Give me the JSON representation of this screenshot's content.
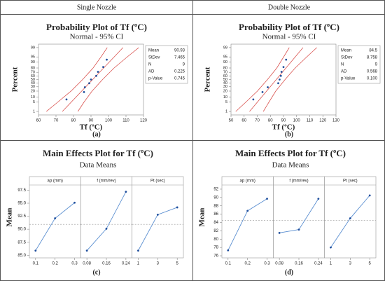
{
  "table": {
    "headers": [
      "Single Nozzle",
      "Double Nozzle"
    ],
    "captions": [
      "(a)",
      "(b)",
      "(c)",
      "(d)"
    ]
  },
  "chart_data": [
    {
      "type": "probability",
      "title": "Probability Plot of Tf (ºC)",
      "subtitle": "Normal - 95% CI",
      "xlabel": "Tf (ºC)",
      "ylabel": "Percent",
      "xlim": [
        60,
        120
      ],
      "xticks": [
        60,
        70,
        80,
        90,
        100,
        110,
        120
      ],
      "ylim": [
        0.5,
        99.5
      ],
      "yticks": [
        1,
        5,
        10,
        20,
        30,
        40,
        50,
        60,
        70,
        80,
        90,
        95,
        99
      ],
      "point_color": "#1f4e9c",
      "line_color": "#d9534f",
      "points": {
        "x": [
          76,
          86,
          86.5,
          89,
          90,
          93,
          94,
          97,
          99
        ],
        "y": [
          7.4,
          18.1,
          28.7,
          39.4,
          50,
          60.6,
          71.3,
          81.9,
          92.6
        ]
      },
      "fit": {
        "x": [
          73.6,
          108.3
        ],
        "y": [
          1,
          99
        ]
      },
      "ci_low": {
        "x": [
          64.5,
          71,
          78.6,
          85.2,
          91.2,
          95.7,
          99.3
        ],
        "y": [
          1,
          5,
          20,
          50,
          80,
          95,
          99
        ]
      },
      "ci_high": {
        "x": [
          82.5,
          86,
          90.6,
          96.6,
          103.2,
          110.7,
          117.3
        ],
        "y": [
          1,
          5,
          20,
          50,
          80,
          95,
          99
        ]
      },
      "stats": [
        {
          "label": "Mean",
          "value": "90.93"
        },
        {
          "label": "StDev",
          "value": "7.465"
        },
        {
          "label": "N",
          "value": "9"
        },
        {
          "label": "AD",
          "value": "0.225"
        },
        {
          "label": "p-Value",
          "value": "0.745"
        }
      ]
    },
    {
      "type": "probability",
      "title": "Probability Plot of Tf (ºC)",
      "subtitle": "Normal - 95% CI",
      "xlabel": "Tf (ºC)",
      "ylabel": "Percent",
      "xlim": [
        50,
        130
      ],
      "xticks": [
        50,
        60,
        70,
        80,
        90,
        100,
        110,
        120,
        130
      ],
      "ylim": [
        0.5,
        99.5
      ],
      "yticks": [
        1,
        5,
        10,
        20,
        30,
        40,
        50,
        60,
        70,
        80,
        90,
        95,
        99
      ],
      "point_color": "#1f4e9c",
      "line_color": "#d9534f",
      "points": {
        "x": [
          67,
          74,
          78,
          86,
          87,
          88,
          88.5,
          90,
          92
        ],
        "y": [
          7.4,
          18.1,
          28.7,
          39.4,
          50,
          60.6,
          71.3,
          81.9,
          92.6
        ]
      },
      "fit": {
        "x": [
          64.1,
          104.9
        ],
        "y": [
          1,
          99
        ]
      },
      "ci_low": {
        "x": [
          53.6,
          61.3,
          70.1,
          77.8,
          84.9,
          90.1,
          94.4
        ],
        "y": [
          1,
          5,
          20,
          50,
          80,
          95,
          99
        ]
      },
      "ci_high": {
        "x": [
          74.6,
          78.9,
          84.1,
          91.2,
          98.9,
          107.7,
          115.4
        ],
        "y": [
          1,
          5,
          20,
          50,
          80,
          95,
          99
        ]
      },
      "stats": [
        {
          "label": "Mean",
          "value": "84.5"
        },
        {
          "label": "StDev",
          "value": "8.758"
        },
        {
          "label": "N",
          "value": "9"
        },
        {
          "label": "AD",
          "value": "0.568"
        },
        {
          "label": "p-Value",
          "value": "0.100"
        }
      ]
    },
    {
      "type": "main_effects",
      "title": "Main Effects Plot for Tf (ºC)",
      "subtitle": "Data Means",
      "ylabel": "Mean",
      "ylim": [
        84.5,
        98.5
      ],
      "yticks": [
        {
          "value": 85,
          "label": "85.0"
        },
        {
          "value": 87.5,
          "label": "87.5"
        },
        {
          "value": 90,
          "label": "90.0"
        },
        {
          "value": 92.5,
          "label": "92.5"
        },
        {
          "value": 95,
          "label": "95.0"
        },
        {
          "value": 97.5,
          "label": "97.5"
        }
      ],
      "refline": 90.93,
      "color": "#5b8fd1",
      "panels": [
        {
          "name": "ap (mm)",
          "categories": [
            "0.1",
            "0.2",
            "0.3"
          ],
          "values": [
            85.9,
            92.1,
            95.1
          ]
        },
        {
          "name": "f (mm/rev)",
          "categories": [
            "0.08",
            "0.16",
            "0.24"
          ],
          "values": [
            85.9,
            90.1,
            97.2
          ]
        },
        {
          "name": "Pt (sec)",
          "categories": [
            "1",
            "3",
            "5"
          ],
          "values": [
            85.9,
            92.8,
            94.2
          ]
        }
      ]
    },
    {
      "type": "main_effects",
      "title": "Main Effects Plot for Tf (ºC)",
      "subtitle": "Data Means",
      "ylabel": "Mean",
      "ylim": [
        75.5,
        93
      ],
      "yticks": [
        76,
        78,
        80,
        82,
        84,
        86,
        88,
        90,
        92
      ],
      "refline": 84.5,
      "color": "#5b8fd1",
      "panels": [
        {
          "name": "ap (mm)",
          "categories": [
            "0.1",
            "0.2",
            "0.3"
          ],
          "values": [
            77.3,
            86.8,
            89.7
          ]
        },
        {
          "name": "f (mm/rev)",
          "categories": [
            "0.08",
            "0.16",
            "0.24"
          ],
          "values": [
            81.5,
            82.3,
            89.7
          ]
        },
        {
          "name": "Pt (sec)",
          "categories": [
            "1",
            "3",
            "5"
          ],
          "values": [
            78.0,
            85.0,
            90.5
          ]
        }
      ]
    }
  ]
}
